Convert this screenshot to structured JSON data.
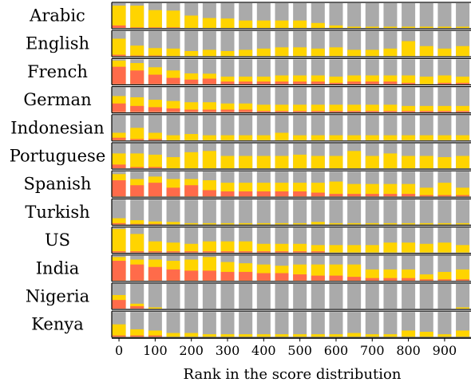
{
  "chart_data": {
    "type": "bar",
    "layout": "small-multiples-stacked",
    "xlabel": "Rank in the score distribution",
    "x_ticks": [
      0,
      100,
      200,
      300,
      400,
      500,
      600,
      700,
      800,
      900
    ],
    "bins": [
      0,
      50,
      100,
      150,
      200,
      250,
      300,
      350,
      400,
      450,
      500,
      550,
      600,
      650,
      700,
      750,
      800,
      850,
      900,
      950
    ],
    "value_range": [
      0,
      1
    ],
    "colors": {
      "red": "#ff6b4a",
      "yellow": "#ffd400",
      "gray": "#aaaaaa"
    },
    "legend": "none",
    "rows": [
      {
        "label": "Arabic",
        "red": [
          0.1,
          0.02,
          0.02,
          0.02,
          0,
          0,
          0,
          0,
          0,
          0,
          0,
          0,
          0,
          0,
          0,
          0,
          0,
          0,
          0,
          0
        ],
        "yellow": [
          0.8,
          0.88,
          0.7,
          0.68,
          0.5,
          0.4,
          0.38,
          0.3,
          0.3,
          0.3,
          0.3,
          0.2,
          0.1,
          0.05,
          0.05,
          0.05,
          0.05,
          0.05,
          0.05,
          0.05
        ]
      },
      {
        "label": "English",
        "red": [
          0.05,
          0.02,
          0.02,
          0,
          0,
          0,
          0,
          0,
          0,
          0,
          0,
          0,
          0,
          0,
          0,
          0,
          0,
          0,
          0,
          0
        ],
        "yellow": [
          0.65,
          0.4,
          0.3,
          0.3,
          0.2,
          0.25,
          0.2,
          0.25,
          0.3,
          0.35,
          0.35,
          0.3,
          0.35,
          0.25,
          0.25,
          0.3,
          0.6,
          0.4,
          0.3,
          0.4
        ]
      },
      {
        "label": "French",
        "red": [
          0.7,
          0.55,
          0.38,
          0.25,
          0.18,
          0.22,
          0.1,
          0.1,
          0.1,
          0.1,
          0.1,
          0.1,
          0.05,
          0.1,
          0.1,
          0.1,
          0.05,
          0,
          0.05,
          0.05
        ],
        "yellow": [
          0.25,
          0.3,
          0.3,
          0.3,
          0.25,
          0.2,
          0.2,
          0.2,
          0.2,
          0.25,
          0.25,
          0.25,
          0.25,
          0.25,
          0.25,
          0.25,
          0.3,
          0.3,
          0.3,
          0.25
        ]
      },
      {
        "label": "German",
        "red": [
          0.35,
          0.25,
          0.2,
          0.15,
          0.1,
          0.1,
          0.1,
          0.1,
          0.05,
          0.05,
          0.05,
          0.05,
          0.05,
          0.05,
          0.05,
          0.05,
          0.05,
          0.05,
          0.05,
          0.05
        ],
        "yellow": [
          0.3,
          0.35,
          0.3,
          0.3,
          0.3,
          0.3,
          0.25,
          0.25,
          0.25,
          0.25,
          0.25,
          0.25,
          0.25,
          0.25,
          0.25,
          0.25,
          0.2,
          0.2,
          0.2,
          0.2
        ]
      },
      {
        "label": "Indonesian",
        "red": [
          0.1,
          0.05,
          0.05,
          0,
          0,
          0,
          0,
          0,
          0,
          0,
          0,
          0,
          0,
          0,
          0,
          0,
          0,
          0,
          0,
          0
        ],
        "yellow": [
          0.2,
          0.45,
          0.25,
          0.2,
          0.25,
          0.2,
          0.2,
          0.2,
          0.2,
          0.3,
          0.2,
          0.2,
          0.2,
          0.2,
          0.2,
          0.2,
          0.2,
          0.2,
          0.2,
          0.2
        ]
      },
      {
        "label": "Portuguese",
        "red": [
          0.15,
          0.05,
          0.05,
          0,
          0,
          0,
          0,
          0,
          0,
          0,
          0,
          0,
          0,
          0,
          0,
          0,
          0,
          0,
          0,
          0
        ],
        "yellow": [
          0.45,
          0.55,
          0.5,
          0.45,
          0.65,
          0.7,
          0.5,
          0.5,
          0.5,
          0.5,
          0.55,
          0.5,
          0.5,
          0.7,
          0.5,
          0.6,
          0.5,
          0.5,
          0.45,
          0.5
        ]
      },
      {
        "label": "Spanish",
        "red": [
          0.65,
          0.45,
          0.55,
          0.35,
          0.45,
          0.25,
          0.2,
          0.2,
          0.2,
          0.2,
          0.2,
          0.15,
          0.1,
          0.1,
          0.1,
          0.1,
          0.1,
          0.05,
          0.05,
          0.05
        ],
        "yellow": [
          0.25,
          0.25,
          0.25,
          0.35,
          0.25,
          0.4,
          0.35,
          0.35,
          0.35,
          0.35,
          0.35,
          0.4,
          0.5,
          0.4,
          0.4,
          0.4,
          0.4,
          0.3,
          0.5,
          0.3
        ]
      },
      {
        "label": "Turkish",
        "red": [
          0.05,
          0.02,
          0.02,
          0,
          0,
          0,
          0,
          0,
          0,
          0,
          0,
          0,
          0,
          0,
          0,
          0,
          0,
          0,
          0,
          0
        ],
        "yellow": [
          0.2,
          0.15,
          0.1,
          0.1,
          0.05,
          0.05,
          0.05,
          0.05,
          0.05,
          0.05,
          0.05,
          0.1,
          0.05,
          0.05,
          0.05,
          0.05,
          0.05,
          0.05,
          0.05,
          0.05
        ]
      },
      {
        "label": "US",
        "red": [
          0.05,
          0.05,
          0.05,
          0.05,
          0.05,
          0.05,
          0.05,
          0.05,
          0.05,
          0.05,
          0.05,
          0.05,
          0,
          0,
          0,
          0,
          0,
          0,
          0,
          0
        ],
        "yellow": [
          0.9,
          0.7,
          0.4,
          0.35,
          0.3,
          0.4,
          0.4,
          0.4,
          0.3,
          0.3,
          0.3,
          0.25,
          0.3,
          0.3,
          0.3,
          0.4,
          0.4,
          0.35,
          0.4,
          0.3
        ]
      },
      {
        "label": "India",
        "red": [
          0.8,
          0.65,
          0.55,
          0.45,
          0.4,
          0.4,
          0.35,
          0.35,
          0.3,
          0.3,
          0.25,
          0.2,
          0.2,
          0.15,
          0.1,
          0.1,
          0.1,
          0.05,
          0.05,
          0.05
        ],
        "yellow": [
          0.15,
          0.2,
          0.3,
          0.35,
          0.45,
          0.55,
          0.4,
          0.35,
          0.35,
          0.3,
          0.4,
          0.45,
          0.45,
          0.5,
          0.35,
          0.35,
          0.35,
          0.2,
          0.3,
          0.4
        ]
      },
      {
        "label": "Nigeria",
        "red": [
          0.35,
          0.1,
          0,
          0,
          0,
          0,
          0,
          0,
          0,
          0,
          0,
          0,
          0,
          0,
          0,
          0,
          0,
          0,
          0,
          0
        ],
        "yellow": [
          0.2,
          0.1,
          0.05,
          0,
          0,
          0,
          0,
          0,
          0,
          0,
          0,
          0,
          0,
          0,
          0,
          0,
          0,
          0,
          0,
          0.05
        ]
      },
      {
        "label": "Kenya",
        "red": [
          0.05,
          0.05,
          0.05,
          0,
          0,
          0,
          0,
          0,
          0,
          0,
          0,
          0,
          0,
          0,
          0,
          0,
          0,
          0,
          0,
          0
        ],
        "yellow": [
          0.45,
          0.25,
          0.2,
          0.15,
          0.15,
          0.1,
          0.1,
          0.1,
          0.1,
          0.1,
          0.1,
          0.1,
          0.1,
          0.15,
          0.1,
          0.1,
          0.25,
          0.2,
          0.1,
          0.25
        ]
      }
    ]
  }
}
